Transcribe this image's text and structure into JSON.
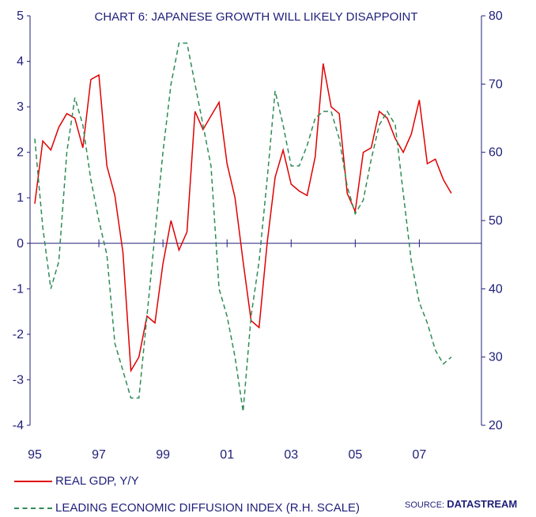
{
  "chart_data": {
    "type": "line",
    "title": "CHART 6: JAPANESE GROWTH WILL LIKELY DISAPPOINT",
    "x_tick_labels": [
      "95",
      "97",
      "99",
      "01",
      "03",
      "05",
      "07"
    ],
    "left_axis": {
      "ylim": [
        -4,
        5
      ],
      "ticks": [
        "5",
        "4",
        "3",
        "2",
        "1",
        "0",
        "-1",
        "-2",
        "-3",
        "-4"
      ]
    },
    "right_axis": {
      "ylim": [
        20,
        80
      ],
      "ticks": [
        "80",
        "70",
        "60",
        "50",
        "40",
        "30",
        "20"
      ]
    },
    "zero_line": 0,
    "series": [
      {
        "name": "REAL GDP, Y/Y",
        "axis": "left",
        "color": "#e00000",
        "style": "solid",
        "x": [
          1995.0,
          1995.25,
          1995.5,
          1995.75,
          1996.0,
          1996.25,
          1996.5,
          1996.75,
          1997.0,
          1997.25,
          1997.5,
          1997.75,
          1998.0,
          1998.25,
          1998.5,
          1998.75,
          1999.0,
          1999.25,
          1999.5,
          1999.75,
          2000.0,
          2000.25,
          2000.5,
          2000.75,
          2001.0,
          2001.25,
          2001.5,
          2001.75,
          2002.0,
          2002.25,
          2002.5,
          2002.75,
          2003.0,
          2003.25,
          2003.5,
          2003.75,
          2004.0,
          2004.25,
          2004.5,
          2004.75,
          2005.0,
          2005.25,
          2005.5,
          2005.75,
          2006.0,
          2006.25,
          2006.5,
          2006.75,
          2007.0,
          2007.25,
          2007.5,
          2007.75,
          2008.0
        ],
        "y": [
          0.87,
          2.25,
          2.05,
          2.55,
          2.85,
          2.75,
          2.1,
          3.6,
          3.7,
          1.7,
          1.05,
          -0.2,
          -2.8,
          -2.5,
          -1.6,
          -1.75,
          -0.45,
          0.5,
          -0.15,
          0.25,
          2.9,
          2.5,
          2.8,
          3.1,
          1.75,
          1.0,
          -0.4,
          -1.7,
          -1.85,
          0.0,
          1.45,
          2.05,
          1.3,
          1.15,
          1.05,
          1.9,
          3.95,
          3.0,
          2.85,
          1.1,
          0.7,
          2.0,
          2.1,
          2.9,
          2.75,
          2.3,
          2.0,
          2.4,
          3.15,
          1.75,
          1.85,
          1.4,
          1.1
        ]
      },
      {
        "name": "LEADING ECONOMIC DIFFUSION INDEX (R.H. SCALE)",
        "axis": "right",
        "color": "#2e8b57",
        "style": "dashed",
        "x": [
          1995.0,
          1995.25,
          1995.5,
          1995.75,
          1996.0,
          1996.25,
          1996.5,
          1996.75,
          1997.0,
          1997.25,
          1997.5,
          1997.75,
          1998.0,
          1998.25,
          1998.5,
          1998.75,
          1999.0,
          1999.25,
          1999.5,
          1999.75,
          2000.0,
          2000.25,
          2000.5,
          2000.75,
          2001.0,
          2001.25,
          2001.5,
          2001.75,
          2002.0,
          2002.25,
          2002.5,
          2002.75,
          2003.0,
          2003.25,
          2003.5,
          2003.75,
          2004.0,
          2004.25,
          2004.5,
          2004.75,
          2005.0,
          2005.25,
          2005.5,
          2005.75,
          2006.0,
          2006.25,
          2006.5,
          2006.75,
          2007.0,
          2007.25,
          2007.5,
          2007.75,
          2008.0
        ],
        "y": [
          62,
          49,
          40,
          44,
          60,
          68,
          64,
          56,
          50,
          45,
          32,
          28,
          24,
          24,
          36,
          48,
          60,
          70,
          76,
          76,
          70,
          64,
          58,
          40,
          36,
          30,
          22,
          36,
          44,
          56,
          69,
          64,
          58,
          58,
          61,
          65,
          66,
          66,
          62,
          55,
          51,
          53,
          59,
          64,
          66,
          64,
          54,
          44,
          38,
          35,
          31,
          29,
          30
        ]
      }
    ],
    "legend_placement": "bottom-left",
    "source_label": "SOURCE:",
    "source_name": "DATASTREAM",
    "grid": false
  }
}
